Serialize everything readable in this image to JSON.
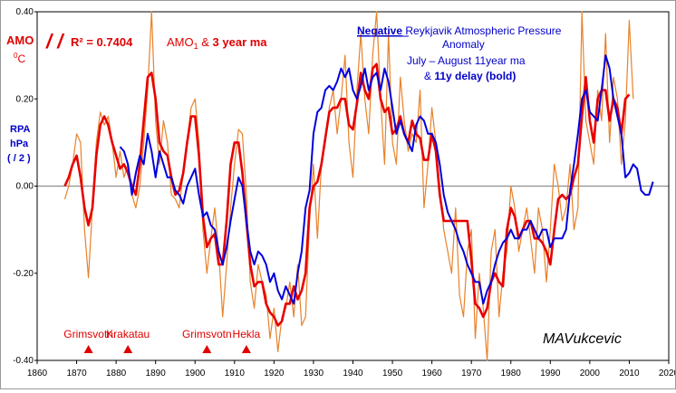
{
  "chart_data": {
    "type": "line",
    "x_axis": {
      "min": 1860,
      "max": 2020,
      "step": 10,
      "ticks": [
        "1860",
        "1870",
        "1880",
        "1890",
        "1900",
        "1910",
        "1920",
        "1930",
        "1940",
        "1950",
        "1960",
        "1970",
        "1980",
        "1990",
        "2000",
        "2010",
        "2020"
      ]
    },
    "y_axis": {
      "min": -0.4,
      "max": 0.4,
      "ticks": [
        "0.40",
        "0.20",
        "0.00",
        "-0.20",
        "-0.40"
      ]
    },
    "grid": false,
    "left_labels": {
      "amo": "AMO",
      "amo_unit": "0C",
      "rpa": "RPA",
      "rpa_unit": "hPa",
      "rpa_div": "( / 2 )"
    },
    "r2_text": "R² = 0.7404",
    "r2_slashes": "/ /",
    "amo_legend": {
      "prefix": "AMO",
      "sub": "1",
      "middle": " & ",
      "bold": "3 year ma"
    },
    "rpa_legend": {
      "bold_underlined": "Negative",
      "line1_rest": " Reykjavik Atmospheric Pressure",
      "line2": "Anomaly",
      "line3": "July – August 11year ma",
      "line4_prefix": "& ",
      "line4_bold": "11y delay (bold)"
    },
    "signature": "MAVukcevic",
    "volcanoes": [
      {
        "name": "Grimsvotn",
        "year": 1873
      },
      {
        "name": "Krakatau",
        "year": 1883
      },
      {
        "name": "Grimsvotn",
        "year": 1903
      },
      {
        "name": "Hekla",
        "year": 1913
      }
    ],
    "series": [
      {
        "name": "AMO (annual)",
        "color": "#e8822a",
        "x": [
          1867,
          1868,
          1869,
          1870,
          1871,
          1872,
          1873,
          1874,
          1875,
          1876,
          1877,
          1878,
          1879,
          1880,
          1881,
          1882,
          1883,
          1884,
          1885,
          1886,
          1887,
          1888,
          1889,
          1890,
          1891,
          1892,
          1893,
          1894,
          1895,
          1896,
          1897,
          1898,
          1899,
          1900,
          1901,
          1902,
          1903,
          1904,
          1905,
          1906,
          1907,
          1908,
          1909,
          1910,
          1911,
          1912,
          1913,
          1914,
          1915,
          1916,
          1917,
          1918,
          1919,
          1920,
          1921,
          1922,
          1923,
          1924,
          1925,
          1926,
          1927,
          1928,
          1929,
          1930,
          1931,
          1932,
          1933,
          1934,
          1935,
          1936,
          1937,
          1938,
          1939,
          1940,
          1941,
          1942,
          1943,
          1944,
          1945,
          1946,
          1947,
          1948,
          1949,
          1950,
          1951,
          1952,
          1953,
          1954,
          1955,
          1956,
          1957,
          1958,
          1959,
          1960,
          1961,
          1962,
          1963,
          1964,
          1965,
          1966,
          1967,
          1968,
          1969,
          1970,
          1971,
          1972,
          1973,
          1974,
          1975,
          1976,
          1977,
          1978,
          1979,
          1980,
          1981,
          1982,
          1983,
          1984,
          1985,
          1986,
          1987,
          1988,
          1989,
          1990,
          1991,
          1992,
          1993,
          1994,
          1995,
          1996,
          1997,
          1998,
          1999,
          2000,
          2001,
          2002,
          2003,
          2004,
          2005,
          2006,
          2007,
          2008,
          2009,
          2010,
          2011
        ],
        "y": [
          -0.03,
          0.0,
          0.05,
          0.12,
          0.1,
          -0.1,
          -0.21,
          -0.05,
          0.1,
          0.17,
          0.14,
          0.16,
          0.1,
          0.02,
          0.08,
          0.02,
          0.05,
          -0.02,
          -0.05,
          0.0,
          0.1,
          0.22,
          0.42,
          0.15,
          0.05,
          0.15,
          0.1,
          -0.02,
          -0.03,
          -0.05,
          0.03,
          0.1,
          0.18,
          0.2,
          0.1,
          -0.1,
          -0.2,
          -0.12,
          -0.05,
          -0.15,
          -0.3,
          -0.18,
          -0.05,
          0.05,
          0.13,
          0.12,
          -0.02,
          -0.22,
          -0.28,
          -0.18,
          -0.22,
          -0.25,
          -0.35,
          -0.28,
          -0.38,
          -0.3,
          -0.28,
          -0.22,
          -0.3,
          -0.18,
          -0.32,
          -0.3,
          -0.08,
          0.05,
          -0.12,
          0.05,
          0.1,
          0.18,
          0.22,
          0.12,
          0.2,
          0.3,
          0.1,
          0.02,
          0.22,
          0.35,
          0.2,
          0.12,
          0.3,
          0.4,
          0.2,
          0.05,
          0.35,
          0.1,
          0.05,
          0.25,
          0.15,
          0.08,
          0.12,
          0.1,
          0.22,
          -0.05,
          0.05,
          0.18,
          0.1,
          0.0,
          -0.1,
          -0.15,
          -0.2,
          -0.05,
          -0.25,
          -0.3,
          -0.15,
          -0.1,
          -0.35,
          -0.2,
          -0.28,
          -0.4,
          -0.15,
          -0.1,
          -0.3,
          -0.2,
          -0.15,
          0.0,
          -0.05,
          -0.15,
          -0.1,
          -0.05,
          -0.12,
          -0.2,
          -0.05,
          -0.1,
          -0.22,
          -0.1,
          0.05,
          0.0,
          -0.08,
          -0.05,
          0.05,
          -0.1,
          -0.05,
          0.4,
          0.15,
          0.1,
          0.05,
          0.22,
          0.15,
          0.35,
          0.1,
          0.25,
          0.2,
          0.05,
          0.15,
          0.38,
          0.2
        ],
        "width": 1.2
      },
      {
        "name": "AMO 3 year ma",
        "color": "#e80000",
        "x": [
          1867,
          1868,
          1869,
          1870,
          1871,
          1872,
          1873,
          1874,
          1875,
          1876,
          1877,
          1878,
          1879,
          1880,
          1881,
          1882,
          1883,
          1884,
          1885,
          1886,
          1887,
          1888,
          1889,
          1890,
          1891,
          1892,
          1893,
          1894,
          1895,
          1896,
          1897,
          1898,
          1899,
          1900,
          1901,
          1902,
          1903,
          1904,
          1905,
          1906,
          1907,
          1908,
          1909,
          1910,
          1911,
          1912,
          1913,
          1914,
          1915,
          1916,
          1917,
          1918,
          1919,
          1920,
          1921,
          1922,
          1923,
          1924,
          1925,
          1926,
          1927,
          1928,
          1929,
          1930,
          1931,
          1932,
          1933,
          1934,
          1935,
          1936,
          1937,
          1938,
          1939,
          1940,
          1941,
          1942,
          1943,
          1944,
          1945,
          1946,
          1947,
          1948,
          1949,
          1950,
          1951,
          1952,
          1953,
          1954,
          1955,
          1956,
          1957,
          1958,
          1959,
          1960,
          1961,
          1962,
          1963,
          1964,
          1965,
          1966,
          1967,
          1968,
          1969,
          1970,
          1971,
          1972,
          1973,
          1974,
          1975,
          1976,
          1977,
          1978,
          1979,
          1980,
          1981,
          1982,
          1983,
          1984,
          1985,
          1986,
          1987,
          1988,
          1989,
          1990,
          1991,
          1992,
          1993,
          1994,
          1995,
          1996,
          1997,
          1998,
          1999,
          2000,
          2001,
          2002,
          2003,
          2004,
          2005,
          2006,
          2007,
          2008,
          2009,
          2010
        ],
        "y": [
          0.0,
          0.02,
          0.05,
          0.07,
          0.02,
          -0.05,
          -0.09,
          -0.05,
          0.07,
          0.14,
          0.16,
          0.14,
          0.1,
          0.07,
          0.04,
          0.05,
          0.03,
          0.0,
          -0.02,
          0.05,
          0.15,
          0.25,
          0.26,
          0.2,
          0.1,
          0.08,
          0.07,
          0.02,
          -0.02,
          -0.01,
          0.03,
          0.1,
          0.16,
          0.16,
          0.07,
          -0.07,
          -0.14,
          -0.12,
          -0.11,
          -0.18,
          -0.18,
          -0.08,
          0.05,
          0.1,
          0.1,
          0.03,
          -0.08,
          -0.18,
          -0.23,
          -0.22,
          -0.22,
          -0.27,
          -0.29,
          -0.3,
          -0.32,
          -0.31,
          -0.27,
          -0.27,
          -0.23,
          -0.26,
          -0.24,
          -0.2,
          -0.05,
          0.0,
          0.01,
          0.05,
          0.11,
          0.17,
          0.18,
          0.18,
          0.2,
          0.2,
          0.14,
          0.13,
          0.19,
          0.26,
          0.22,
          0.2,
          0.27,
          0.28,
          0.2,
          0.17,
          0.18,
          0.12,
          0.13,
          0.16,
          0.12,
          0.1,
          0.15,
          0.12,
          0.11,
          0.06,
          0.06,
          0.12,
          0.08,
          -0.02,
          -0.08,
          -0.08,
          -0.08,
          -0.08,
          -0.08,
          -0.08,
          -0.08,
          -0.17,
          -0.27,
          -0.28,
          -0.3,
          -0.28,
          -0.22,
          -0.2,
          -0.22,
          -0.23,
          -0.1,
          -0.05,
          -0.07,
          -0.12,
          -0.1,
          -0.08,
          -0.08,
          -0.12,
          -0.12,
          -0.13,
          -0.15,
          -0.18,
          -0.1,
          -0.03,
          -0.02,
          -0.03,
          -0.02,
          0.02,
          0.05,
          0.16,
          0.25,
          0.15,
          0.1,
          0.2,
          0.22,
          0.22,
          0.15,
          0.2,
          0.18,
          0.12,
          0.2,
          0.21
        ],
        "width": 2.6
      },
      {
        "name": "Negative Reykjavik Atmospheric Pressure Anomaly July – August 11year ma & 11y delay (bold)",
        "color": "#0000dc",
        "x": [
          1881,
          1882,
          1883,
          1884,
          1885,
          1886,
          1887,
          1888,
          1889,
          1890,
          1891,
          1892,
          1893,
          1894,
          1895,
          1896,
          1897,
          1898,
          1899,
          1900,
          1901,
          1902,
          1903,
          1904,
          1905,
          1906,
          1907,
          1908,
          1909,
          1910,
          1911,
          1912,
          1913,
          1914,
          1915,
          1916,
          1917,
          1918,
          1919,
          1920,
          1921,
          1922,
          1923,
          1924,
          1925,
          1926,
          1927,
          1928,
          1929,
          1930,
          1931,
          1932,
          1933,
          1934,
          1935,
          1936,
          1937,
          1938,
          1939,
          1940,
          1941,
          1942,
          1943,
          1944,
          1945,
          1946,
          1947,
          1948,
          1949,
          1950,
          1951,
          1952,
          1953,
          1954,
          1955,
          1956,
          1957,
          1958,
          1959,
          1960,
          1961,
          1962,
          1963,
          1964,
          1965,
          1966,
          1967,
          1968,
          1969,
          1970,
          1971,
          1972,
          1973,
          1974,
          1975,
          1976,
          1977,
          1978,
          1979,
          1980,
          1981,
          1982,
          1983,
          1984,
          1985,
          1986,
          1987,
          1988,
          1989,
          1990,
          1991,
          1992,
          1993,
          1994,
          1995,
          1996,
          1997,
          1998,
          1999,
          2000,
          2001,
          2002,
          2003,
          2004,
          2005,
          2006,
          2007,
          2008,
          2009,
          2010,
          2011,
          2012,
          2013,
          2014,
          2015,
          2016
        ],
        "y": [
          0.09,
          0.08,
          0.05,
          -0.02,
          0.03,
          0.07,
          0.05,
          0.12,
          0.08,
          0.02,
          0.08,
          0.05,
          0.02,
          0.02,
          -0.01,
          -0.02,
          -0.04,
          0.0,
          0.02,
          0.04,
          -0.02,
          -0.07,
          -0.06,
          -0.09,
          -0.1,
          -0.15,
          -0.18,
          -0.14,
          -0.08,
          -0.03,
          0.02,
          0.0,
          -0.08,
          -0.15,
          -0.18,
          -0.15,
          -0.16,
          -0.18,
          -0.22,
          -0.2,
          -0.24,
          -0.26,
          -0.23,
          -0.25,
          -0.27,
          -0.2,
          -0.15,
          -0.05,
          -0.01,
          0.12,
          0.17,
          0.18,
          0.22,
          0.23,
          0.22,
          0.24,
          0.27,
          0.25,
          0.27,
          0.22,
          0.2,
          0.23,
          0.27,
          0.22,
          0.25,
          0.26,
          0.22,
          0.27,
          0.24,
          0.18,
          0.12,
          0.15,
          0.12,
          0.1,
          0.08,
          0.14,
          0.16,
          0.15,
          0.12,
          0.12,
          0.1,
          0.05,
          -0.02,
          -0.06,
          -0.08,
          -0.1,
          -0.13,
          -0.15,
          -0.18,
          -0.2,
          -0.22,
          -0.22,
          -0.27,
          -0.24,
          -0.22,
          -0.18,
          -0.15,
          -0.13,
          -0.12,
          -0.1,
          -0.12,
          -0.12,
          -0.1,
          -0.1,
          -0.08,
          -0.1,
          -0.12,
          -0.1,
          -0.1,
          -0.14,
          -0.12,
          -0.12,
          -0.12,
          -0.1,
          -0.01,
          0.05,
          0.12,
          0.2,
          0.22,
          0.17,
          0.16,
          0.15,
          0.22,
          0.3,
          0.27,
          0.2,
          0.16,
          0.12,
          0.02,
          0.03,
          0.05,
          0.04,
          -0.01,
          -0.02,
          -0.02,
          0.01
        ],
        "width": 2.0
      }
    ]
  }
}
